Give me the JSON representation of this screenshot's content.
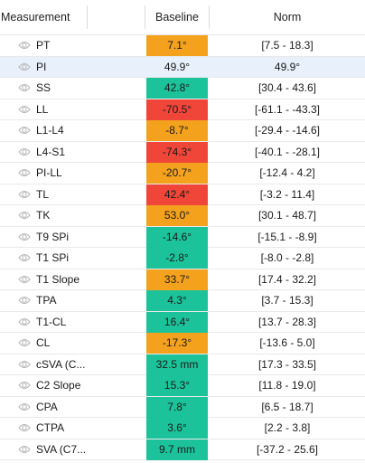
{
  "colors": {
    "green": "#1cc39a",
    "orange": "#f4a21e",
    "red": "#f0463a",
    "selected_row": "#e8f1fb"
  },
  "columns": {
    "measurement": "Measurement",
    "baseline": "Baseline",
    "norm": "Norm"
  },
  "rows": [
    {
      "name": "PT",
      "baseline": "7.1°",
      "norm": "[7.5 - 18.3]",
      "status": "orange"
    },
    {
      "name": "PI",
      "baseline": "49.9°",
      "norm": "49.9°",
      "status": "none",
      "selected": true
    },
    {
      "name": "SS",
      "baseline": "42.8°",
      "norm": "[30.4 - 43.6]",
      "status": "green"
    },
    {
      "name": "LL",
      "baseline": "-70.5°",
      "norm": "[-61.1 - -43.3]",
      "status": "red"
    },
    {
      "name": "L1-L4",
      "baseline": "-8.7°",
      "norm": "[-29.4 - -14.6]",
      "status": "orange"
    },
    {
      "name": "L4-S1",
      "baseline": "-74.3°",
      "norm": "[-40.1 - -28.1]",
      "status": "red"
    },
    {
      "name": "PI-LL",
      "baseline": "-20.7°",
      "norm": "[-12.4 - 4.2]",
      "status": "orange"
    },
    {
      "name": "TL",
      "baseline": "42.4°",
      "norm": "[-3.2 - 11.4]",
      "status": "red"
    },
    {
      "name": "TK",
      "baseline": "53.0°",
      "norm": "[30.1 - 48.7]",
      "status": "orange"
    },
    {
      "name": "T9 SPi",
      "baseline": "-14.6°",
      "norm": "[-15.1 - -8.9]",
      "status": "green"
    },
    {
      "name": "T1 SPi",
      "baseline": "-2.8°",
      "norm": "[-8.0 - -2.8]",
      "status": "green"
    },
    {
      "name": "T1 Slope",
      "baseline": "33.7°",
      "norm": "[17.4 - 32.2]",
      "status": "orange"
    },
    {
      "name": "TPA",
      "baseline": "4.3°",
      "norm": "[3.7 - 15.3]",
      "status": "green"
    },
    {
      "name": "T1-CL",
      "baseline": "16.4°",
      "norm": "[13.7 - 28.3]",
      "status": "green"
    },
    {
      "name": "CL",
      "baseline": "-17.3°",
      "norm": "[-13.6 - 5.0]",
      "status": "orange"
    },
    {
      "name": "cSVA (C...",
      "baseline": "32.5 mm",
      "norm": "[17.3 - 33.5]",
      "status": "green"
    },
    {
      "name": "C2 Slope",
      "baseline": "15.3°",
      "norm": "[11.8 - 19.0]",
      "status": "green"
    },
    {
      "name": "CPA",
      "baseline": "7.8°",
      "norm": "[6.5 - 18.7]",
      "status": "green"
    },
    {
      "name": "CTPA",
      "baseline": "3.6°",
      "norm": "[2.2 - 3.8]",
      "status": "green"
    },
    {
      "name": "SVA (C7...",
      "baseline": "9.7 mm",
      "norm": "[-37.2 - 25.6]",
      "status": "green"
    }
  ]
}
